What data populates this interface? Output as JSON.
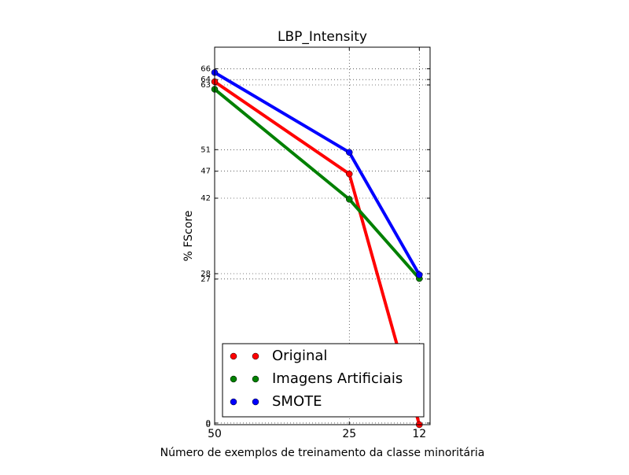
{
  "chart_data": {
    "type": "line",
    "title": "LBP_Intensity",
    "x_label": "Número de exemplos de treinamento da classe minoritária",
    "y_label": "% FScore",
    "x": [
      50,
      25,
      12
    ],
    "series": [
      {
        "name": "Original",
        "color": "#ff0000",
        "values": [
          63.6,
          46.5,
          0
        ]
      },
      {
        "name": "Imagens Artificiais",
        "color": "#008000",
        "values": [
          62.2,
          41.8,
          27.1
        ]
      },
      {
        "name": "SMOTE",
        "color": "#0000ff",
        "values": [
          65.3,
          50.5,
          27.8
        ]
      }
    ],
    "xlim": [
      50,
      10
    ],
    "ylim": [
      0,
      70
    ],
    "xticks": [
      50,
      25,
      12
    ],
    "yticks": [
      {
        "value": 0.3,
        "label": "0"
      },
      0,
      27,
      28,
      42,
      47,
      51,
      63,
      64,
      66
    ],
    "grid": true,
    "legend": "lower right"
  }
}
